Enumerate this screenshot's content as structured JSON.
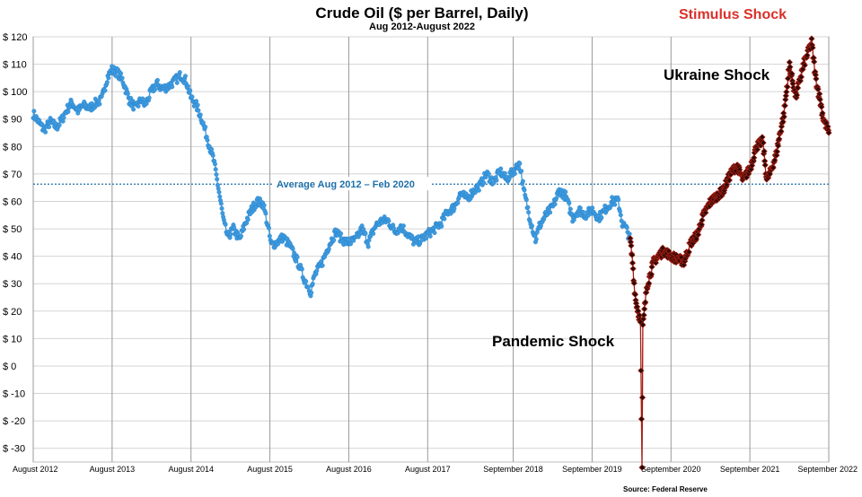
{
  "chart_data": {
    "type": "line",
    "title": "Crude Oil ($ per Barrel, Daily)",
    "subtitle": "Aug 2012-August 2022",
    "xlabel": "",
    "ylabel": "",
    "source": "Source: Federal Reserve",
    "ylim": [
      -35,
      120
    ],
    "xlim": [
      2012.583,
      2022.667
    ],
    "grid": true,
    "y_ticks": [
      120,
      110,
      100,
      90,
      80,
      70,
      60,
      50,
      40,
      30,
      20,
      10,
      0,
      -10,
      -20,
      -30
    ],
    "y_tick_labels": [
      "$ 120",
      "$ 110",
      "$ 100",
      "$ 90",
      "$ 80",
      "$ 70",
      "$ 60",
      "$ 50",
      "$ 40",
      "$ 30",
      "$ 20",
      "$ 10",
      "$ 0",
      "$ -10",
      "$ -20",
      "$ -30"
    ],
    "x_ticks": [
      2012.583,
      2013.583,
      2014.583,
      2015.583,
      2016.583,
      2017.583,
      2018.667,
      2019.667,
      2020.667,
      2021.667,
      2022.667
    ],
    "x_tick_labels": [
      "August 2012",
      "August 2013",
      "August 2014",
      "August 2015",
      "August 2016",
      "August 2017",
      "September 2018",
      "September 2019",
      "September 2020",
      "September 2021",
      "September 2022"
    ],
    "reference_line": {
      "value": 66.3,
      "label": "Average Aug 2012 – Feb 2020",
      "color": "#1f6fa8"
    },
    "annotations": [
      {
        "text": "Stimulus Shock",
        "color": "#d9302a"
      },
      {
        "text": "Ukraine Shock",
        "color": "#000000"
      },
      {
        "text": "Pandemic Shock",
        "color": "#000000"
      }
    ],
    "series": [
      {
        "color": "#3d9be0",
        "marker": "circle",
        "points": [
          [
            2012.583,
            92
          ],
          [
            2012.65,
            89
          ],
          [
            2012.72,
            86
          ],
          [
            2012.8,
            89
          ],
          [
            2012.88,
            87
          ],
          [
            2012.95,
            90
          ],
          [
            2013.0,
            93
          ],
          [
            2013.07,
            96
          ],
          [
            2013.15,
            93
          ],
          [
            2013.22,
            95
          ],
          [
            2013.3,
            94
          ],
          [
            2013.38,
            96
          ],
          [
            2013.45,
            97
          ],
          [
            2013.52,
            105
          ],
          [
            2013.58,
            108
          ],
          [
            2013.65,
            107
          ],
          [
            2013.72,
            104
          ],
          [
            2013.8,
            97
          ],
          [
            2013.88,
            94
          ],
          [
            2013.95,
            97
          ],
          [
            2014.0,
            95
          ],
          [
            2014.08,
            100
          ],
          [
            2014.15,
            103
          ],
          [
            2014.22,
            101
          ],
          [
            2014.3,
            102
          ],
          [
            2014.38,
            104
          ],
          [
            2014.45,
            106
          ],
          [
            2014.52,
            104
          ],
          [
            2014.58,
            98
          ],
          [
            2014.65,
            95
          ],
          [
            2014.72,
            90
          ],
          [
            2014.8,
            82
          ],
          [
            2014.87,
            75
          ],
          [
            2014.93,
            65
          ],
          [
            2015.0,
            52
          ],
          [
            2015.05,
            47
          ],
          [
            2015.12,
            50
          ],
          [
            2015.2,
            46
          ],
          [
            2015.27,
            52
          ],
          [
            2015.35,
            57
          ],
          [
            2015.42,
            60
          ],
          [
            2015.5,
            59
          ],
          [
            2015.55,
            52
          ],
          [
            2015.6,
            44
          ],
          [
            2015.67,
            45
          ],
          [
            2015.75,
            47
          ],
          [
            2015.83,
            44
          ],
          [
            2015.9,
            40
          ],
          [
            2015.95,
            37
          ],
          [
            2016.0,
            33
          ],
          [
            2016.05,
            30
          ],
          [
            2016.1,
            27
          ],
          [
            2016.15,
            33
          ],
          [
            2016.25,
            38
          ],
          [
            2016.33,
            44
          ],
          [
            2016.42,
            49
          ],
          [
            2016.5,
            46
          ],
          [
            2016.58,
            45
          ],
          [
            2016.67,
            46
          ],
          [
            2016.75,
            50
          ],
          [
            2016.83,
            45
          ],
          [
            2016.92,
            51
          ],
          [
            2017.0,
            53
          ],
          [
            2017.08,
            53
          ],
          [
            2017.17,
            49
          ],
          [
            2017.25,
            51
          ],
          [
            2017.33,
            48
          ],
          [
            2017.42,
            45
          ],
          [
            2017.5,
            46
          ],
          [
            2017.58,
            48
          ],
          [
            2017.67,
            50
          ],
          [
            2017.75,
            52
          ],
          [
            2017.83,
            56
          ],
          [
            2017.92,
            58
          ],
          [
            2018.0,
            63
          ],
          [
            2018.08,
            61
          ],
          [
            2018.17,
            64
          ],
          [
            2018.25,
            66
          ],
          [
            2018.33,
            70
          ],
          [
            2018.42,
            67
          ],
          [
            2018.5,
            71
          ],
          [
            2018.58,
            68
          ],
          [
            2018.67,
            71
          ],
          [
            2018.75,
            74
          ],
          [
            2018.8,
            64
          ],
          [
            2018.87,
            55
          ],
          [
            2018.95,
            46
          ],
          [
            2019.0,
            51
          ],
          [
            2019.08,
            55
          ],
          [
            2019.17,
            58
          ],
          [
            2019.25,
            64
          ],
          [
            2019.33,
            62
          ],
          [
            2019.42,
            54
          ],
          [
            2019.5,
            57
          ],
          [
            2019.58,
            55
          ],
          [
            2019.67,
            57
          ],
          [
            2019.75,
            54
          ],
          [
            2019.83,
            57
          ],
          [
            2019.92,
            60
          ],
          [
            2020.0,
            60
          ],
          [
            2020.05,
            52
          ],
          [
            2020.1,
            50
          ],
          [
            2020.15,
            46
          ]
        ]
      },
      {
        "color": "#a51d12",
        "marker": "diamond",
        "points": [
          [
            2020.15,
            46
          ],
          [
            2020.18,
            38
          ],
          [
            2020.2,
            30
          ],
          [
            2020.22,
            24
          ],
          [
            2020.25,
            20
          ],
          [
            2020.28,
            16
          ],
          [
            2020.3,
            -37
          ],
          [
            2020.31,
            14
          ],
          [
            2020.33,
            20
          ],
          [
            2020.36,
            29
          ],
          [
            2020.4,
            33
          ],
          [
            2020.45,
            38
          ],
          [
            2020.5,
            40
          ],
          [
            2020.58,
            42
          ],
          [
            2020.67,
            40
          ],
          [
            2020.75,
            39
          ],
          [
            2020.83,
            38
          ],
          [
            2020.92,
            45
          ],
          [
            2021.0,
            48
          ],
          [
            2021.08,
            55
          ],
          [
            2021.17,
            60
          ],
          [
            2021.25,
            62
          ],
          [
            2021.33,
            64
          ],
          [
            2021.42,
            70
          ],
          [
            2021.5,
            73
          ],
          [
            2021.58,
            68
          ],
          [
            2021.67,
            72
          ],
          [
            2021.75,
            80
          ],
          [
            2021.83,
            82
          ],
          [
            2021.88,
            68
          ],
          [
            2021.92,
            70
          ],
          [
            2022.0,
            77
          ],
          [
            2022.05,
            85
          ],
          [
            2022.1,
            92
          ],
          [
            2022.13,
            100
          ],
          [
            2022.17,
            110
          ],
          [
            2022.2,
            105
          ],
          [
            2022.25,
            98
          ],
          [
            2022.3,
            104
          ],
          [
            2022.35,
            110
          ],
          [
            2022.4,
            114
          ],
          [
            2022.45,
            118
          ],
          [
            2022.5,
            105
          ],
          [
            2022.55,
            98
          ],
          [
            2022.6,
            90
          ],
          [
            2022.667,
            85
          ]
        ]
      }
    ]
  }
}
